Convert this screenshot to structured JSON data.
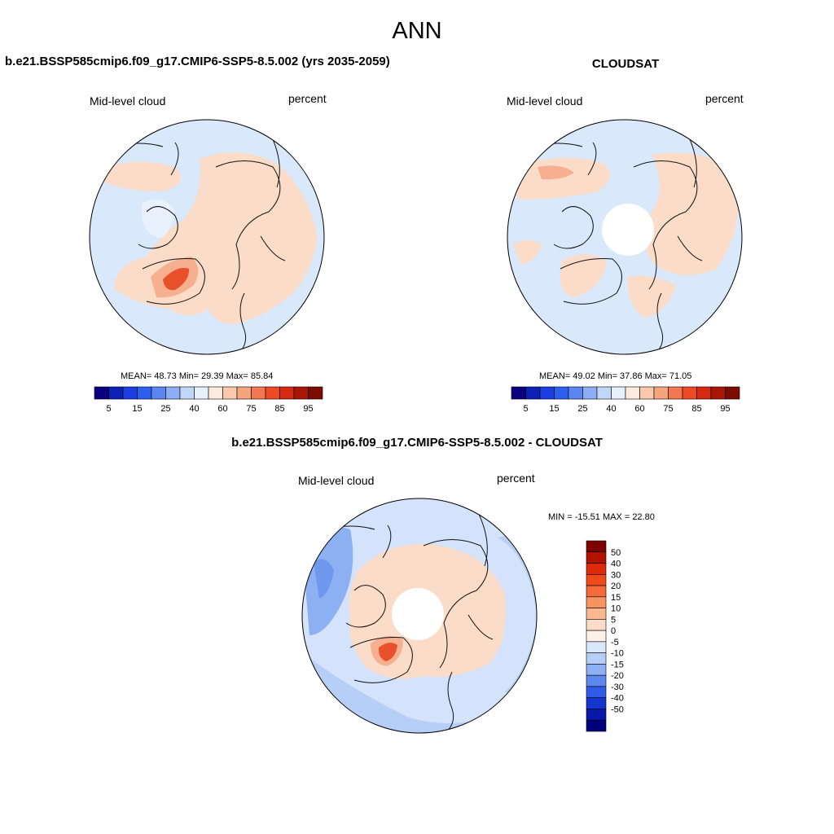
{
  "figure": {
    "title": "ANN"
  },
  "panels": [
    {
      "title": "b.e21.BSSP585cmip6.f09_g17.CMIP6-SSP5-8.5.002 (yrs 2035-2059)",
      "variable": "Mid-level cloud",
      "units": "percent",
      "stats": {
        "mean": "48.73",
        "min": "29.39",
        "max": "85.84"
      },
      "stats_text": "MEAN=  48.73  Min=  29.39  Max=  85.84",
      "colorbar": {
        "colors": [
          "#08007f",
          "#0d20b4",
          "#1a3de0",
          "#2c5ef0",
          "#5b86f2",
          "#8eadf4",
          "#c2d6f8",
          "#e8f0fc",
          "#fde9dd",
          "#f9c9ad",
          "#f5a47e",
          "#f2784f",
          "#ec4a24",
          "#d42b10",
          "#a81606",
          "#7d0c00"
        ],
        "labels": [
          "5",
          "15",
          "25",
          "40",
          "60",
          "75",
          "85",
          "95"
        ]
      }
    },
    {
      "title": "CLOUDSAT",
      "variable": "Mid-level cloud",
      "units": "percent",
      "stats": {
        "mean": "49.02",
        "min": "37.86",
        "max": "71.05"
      },
      "stats_text": "MEAN=  49.02  Min=  37.86  Max=  71.05",
      "colorbar": {
        "colors": [
          "#08007f",
          "#0d20b4",
          "#1a3de0",
          "#2c5ef0",
          "#5b86f2",
          "#8eadf4",
          "#c2d6f8",
          "#e8f0fc",
          "#fde9dd",
          "#f9c9ad",
          "#f5a47e",
          "#f2784f",
          "#ec4a24",
          "#d42b10",
          "#a81606",
          "#7d0c00"
        ],
        "labels": [
          "5",
          "15",
          "25",
          "40",
          "60",
          "75",
          "85",
          "95"
        ]
      }
    },
    {
      "title": "b.e21.BSSP585cmip6.f09_g17.CMIP6-SSP5-8.5.002 - CLOUDSAT",
      "variable": "Mid-level cloud",
      "units": "percent",
      "stats_text": "MIN = -15.51 MAX =  22.80",
      "stats": {
        "min": "-15.51",
        "max": "22.80"
      },
      "colorbar": {
        "colors": [
          "#7d0000",
          "#b31200",
          "#dd2a0a",
          "#f04a1a",
          "#f56a3a",
          "#f7935f",
          "#f9b88f",
          "#fbdcc6",
          "#fdf0e6",
          "#dbe7fb",
          "#b7cff7",
          "#8cb0f2",
          "#5d88ee",
          "#2f5be8",
          "#1535cf",
          "#0818a8",
          "#00007d"
        ],
        "labels": [
          "50",
          "40",
          "30",
          "20",
          "15",
          "10",
          "5",
          "0",
          "-5",
          "-10",
          "-15",
          "-20",
          "-30",
          "-40",
          "-50"
        ]
      }
    }
  ],
  "colors": {
    "background_field_light_blue": "#d9e8fb",
    "positive_light": "#fbdcc8",
    "positive_mid": "#f6b090",
    "positive_strong": "#e8502a",
    "negative_mid": "#aac5f4",
    "negative_strong": "#6f97ee"
  }
}
